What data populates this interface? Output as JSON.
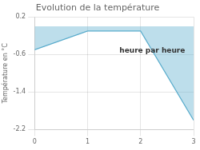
{
  "chart_data": {
    "type": "area",
    "title": "Evolution de la température",
    "ylabel": "Température en °C",
    "x": [
      0,
      1,
      2,
      3
    ],
    "values": [
      -0.5,
      -0.1,
      -0.1,
      -2.0
    ],
    "color": "#5aaccc",
    "xlim": [
      0,
      3
    ],
    "xticks": [
      0,
      1,
      2,
      3
    ],
    "ylim": [
      -2.2,
      0.2
    ],
    "yticks": [
      0.2,
      -0.6,
      -1.4,
      -2.2
    ],
    "grid": true,
    "annotations": [
      {
        "text": "heure par heure",
        "x": 1.6,
        "y": -0.45
      }
    ]
  }
}
